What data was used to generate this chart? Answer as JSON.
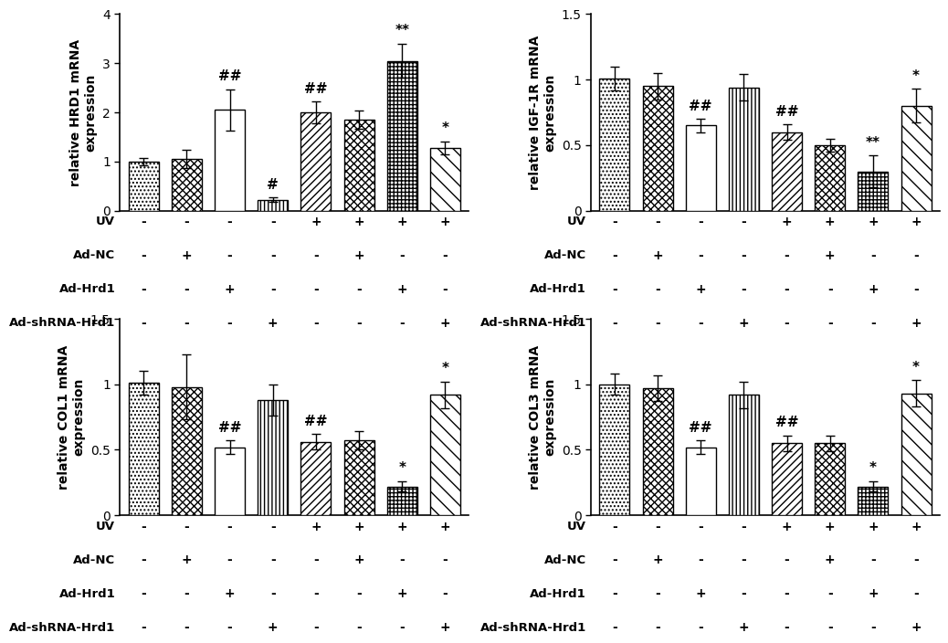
{
  "subplots": [
    {
      "ylabel": "relative HRD1 mRNA\nexpression",
      "ylim": [
        0,
        4
      ],
      "yticks": [
        0,
        1,
        2,
        3,
        4
      ],
      "values": [
        1.0,
        1.05,
        2.05,
        0.22,
        2.0,
        1.85,
        3.05,
        1.28
      ],
      "errors": [
        0.07,
        0.18,
        0.42,
        0.05,
        0.22,
        0.18,
        0.35,
        0.13
      ],
      "annotations": [
        "",
        "",
        "##",
        "#",
        "##",
        "",
        "**",
        "*"
      ]
    },
    {
      "ylabel": "relative IGF-1R mRNA\nexpression",
      "ylim": [
        0.0,
        1.5
      ],
      "yticks": [
        0.0,
        0.5,
        1.0,
        1.5
      ],
      "values": [
        1.01,
        0.95,
        0.65,
        0.94,
        0.6,
        0.5,
        0.3,
        0.8
      ],
      "errors": [
        0.09,
        0.1,
        0.05,
        0.1,
        0.06,
        0.05,
        0.12,
        0.13
      ],
      "annotations": [
        "",
        "",
        "##",
        "",
        "##",
        "",
        "**",
        "*"
      ]
    },
    {
      "ylabel": "relative COL1 mRNA\nexpression",
      "ylim": [
        0.0,
        1.5
      ],
      "yticks": [
        0.0,
        0.5,
        1.0,
        1.5
      ],
      "values": [
        1.01,
        0.98,
        0.52,
        0.88,
        0.56,
        0.57,
        0.22,
        0.92
      ],
      "errors": [
        0.09,
        0.25,
        0.05,
        0.12,
        0.06,
        0.07,
        0.04,
        0.1
      ],
      "annotations": [
        "",
        "",
        "##",
        "",
        "##",
        "",
        "*",
        "*"
      ]
    },
    {
      "ylabel": "relative COL3 mRNA\nexpression",
      "ylim": [
        0.0,
        1.5
      ],
      "yticks": [
        0.0,
        0.5,
        1.0,
        1.5
      ],
      "values": [
        1.0,
        0.97,
        0.52,
        0.92,
        0.55,
        0.55,
        0.22,
        0.93
      ],
      "errors": [
        0.08,
        0.1,
        0.05,
        0.1,
        0.06,
        0.06,
        0.04,
        0.1
      ],
      "annotations": [
        "",
        "",
        "##",
        "",
        "##",
        "",
        "*",
        "*"
      ]
    }
  ],
  "row_labels": [
    "UV",
    "Ad-NC",
    "Ad-Hrd1",
    "Ad-shRNA-Hrd1"
  ],
  "col_signs": [
    [
      "-",
      "-",
      "-",
      "-",
      "+",
      "+",
      "+",
      "+"
    ],
    [
      "-",
      "+",
      "-",
      "-",
      "-",
      "+",
      "-",
      "-"
    ],
    [
      "-",
      "-",
      "+",
      "-",
      "-",
      "-",
      "+",
      "-"
    ],
    [
      "-",
      "-",
      "-",
      "+",
      "-",
      "-",
      "-",
      "+"
    ]
  ],
  "hatch_patterns": [
    "....",
    "xxxx",
    "====",
    "||||",
    "////",
    "xxxx",
    "++++",
    "\\\\\\\\"
  ],
  "bar_width": 0.7,
  "background_color": "#ffffff",
  "text_color": "#000000",
  "label_fontsize": 10,
  "tick_fontsize": 10,
  "ann_fontsize": 11
}
